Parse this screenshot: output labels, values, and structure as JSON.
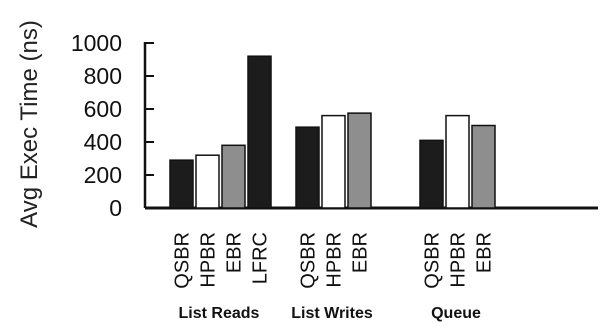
{
  "chart_data": {
    "type": "bar",
    "ylabel": "Avg Exec Time (ns)",
    "ylim": [
      0,
      1000
    ],
    "yticks": [
      0,
      200,
      400,
      600,
      800,
      1000
    ],
    "grid": false,
    "groups": [
      {
        "name": "List Reads",
        "bars": [
          {
            "label": "QSBR",
            "value": 290,
            "fill": "#1c1c1c"
          },
          {
            "label": "HPBR",
            "value": 320,
            "fill": "#ffffff"
          },
          {
            "label": "EBR",
            "value": 380,
            "fill": "#8e8e8e"
          },
          {
            "label": "LFRC",
            "value": 920,
            "fill": "#1c1c1c"
          }
        ]
      },
      {
        "name": "List Writes",
        "bars": [
          {
            "label": "QSBR",
            "value": 490,
            "fill": "#1c1c1c"
          },
          {
            "label": "HPBR",
            "value": 560,
            "fill": "#ffffff"
          },
          {
            "label": "EBR",
            "value": 575,
            "fill": "#8e8e8e"
          }
        ]
      },
      {
        "name": "Queue",
        "bars": [
          {
            "label": "QSBR",
            "value": 410,
            "fill": "#1c1c1c"
          },
          {
            "label": "HPBR",
            "value": 560,
            "fill": "#ffffff"
          },
          {
            "label": "EBR",
            "value": 500,
            "fill": "#8e8e8e"
          }
        ]
      }
    ]
  }
}
